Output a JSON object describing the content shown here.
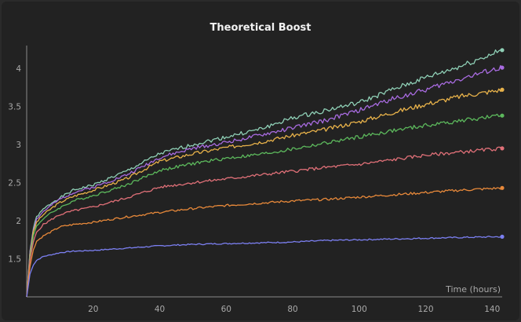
{
  "chart_data": {
    "type": "line",
    "title": "Theoretical Boost",
    "xlabel": "Time (hours)",
    "ylabel": "",
    "xlim": [
      0,
      143
    ],
    "ylim": [
      1.0,
      4.3
    ],
    "x_ticks": [
      20,
      40,
      60,
      80,
      100,
      120,
      140
    ],
    "y_ticks": [
      1.5,
      2,
      2.5,
      3,
      3.5,
      4
    ],
    "grid": false,
    "legend": "none",
    "series": [
      {
        "color": "#8fd0b6",
        "x": [
          0,
          1,
          2,
          3,
          5,
          8,
          10,
          14,
          20,
          30,
          40,
          50,
          60,
          70,
          80,
          90,
          100,
          110,
          120,
          130,
          143
        ],
        "y": [
          1.0,
          1.6,
          1.9,
          2.05,
          2.15,
          2.25,
          2.3,
          2.4,
          2.47,
          2.65,
          2.88,
          3.0,
          3.1,
          3.2,
          3.35,
          3.45,
          3.55,
          3.72,
          3.88,
          4.02,
          4.24
        ]
      },
      {
        "color": "#a86be0",
        "x": [
          0,
          1,
          2,
          3,
          5,
          8,
          10,
          14,
          20,
          30,
          40,
          50,
          60,
          70,
          80,
          90,
          100,
          110,
          120,
          130,
          143
        ],
        "y": [
          1.0,
          1.58,
          1.88,
          2.02,
          2.12,
          2.22,
          2.28,
          2.37,
          2.44,
          2.6,
          2.83,
          2.95,
          3.03,
          3.12,
          3.22,
          3.32,
          3.45,
          3.6,
          3.72,
          3.86,
          4.01
        ]
      },
      {
        "color": "#e8b24a",
        "x": [
          0,
          1,
          2,
          3,
          5,
          8,
          10,
          14,
          20,
          30,
          40,
          50,
          60,
          70,
          80,
          90,
          100,
          110,
          120,
          130,
          143
        ],
        "y": [
          1.0,
          1.55,
          1.85,
          1.98,
          2.08,
          2.18,
          2.24,
          2.32,
          2.4,
          2.55,
          2.78,
          2.88,
          2.96,
          3.03,
          3.12,
          3.2,
          3.3,
          3.42,
          3.53,
          3.63,
          3.72
        ]
      },
      {
        "color": "#5cb85c",
        "x": [
          0,
          1,
          2,
          3,
          5,
          8,
          10,
          14,
          20,
          30,
          40,
          50,
          60,
          70,
          80,
          90,
          100,
          110,
          120,
          130,
          143
        ],
        "y": [
          1.0,
          1.52,
          1.8,
          1.93,
          2.03,
          2.12,
          2.17,
          2.26,
          2.33,
          2.47,
          2.66,
          2.75,
          2.82,
          2.87,
          2.94,
          3.02,
          3.1,
          3.18,
          3.25,
          3.31,
          3.38
        ]
      },
      {
        "color": "#e07078",
        "x": [
          0,
          1,
          2,
          3,
          5,
          8,
          10,
          14,
          20,
          30,
          40,
          50,
          60,
          70,
          80,
          90,
          100,
          110,
          120,
          130,
          143
        ],
        "y": [
          1.0,
          1.48,
          1.72,
          1.85,
          1.95,
          2.03,
          2.08,
          2.13,
          2.18,
          2.3,
          2.44,
          2.5,
          2.55,
          2.6,
          2.65,
          2.7,
          2.74,
          2.8,
          2.86,
          2.9,
          2.95
        ]
      },
      {
        "color": "#e8893a",
        "x": [
          0,
          1,
          2,
          3,
          5,
          8,
          10,
          14,
          20,
          30,
          40,
          50,
          60,
          70,
          80,
          90,
          100,
          110,
          120,
          130,
          143
        ],
        "y": [
          1.0,
          1.4,
          1.62,
          1.73,
          1.8,
          1.87,
          1.92,
          1.95,
          1.98,
          2.05,
          2.11,
          2.16,
          2.2,
          2.23,
          2.26,
          2.28,
          2.31,
          2.34,
          2.37,
          2.4,
          2.43
        ]
      },
      {
        "color": "#7b7ff0",
        "x": [
          0,
          1,
          2,
          3,
          5,
          8,
          10,
          14,
          20,
          30,
          40,
          50,
          60,
          70,
          80,
          90,
          100,
          110,
          120,
          130,
          143
        ],
        "y": [
          1.0,
          1.3,
          1.42,
          1.48,
          1.53,
          1.56,
          1.58,
          1.6,
          1.61,
          1.64,
          1.67,
          1.69,
          1.7,
          1.71,
          1.72,
          1.74,
          1.75,
          1.76,
          1.77,
          1.78,
          1.79
        ]
      }
    ]
  }
}
